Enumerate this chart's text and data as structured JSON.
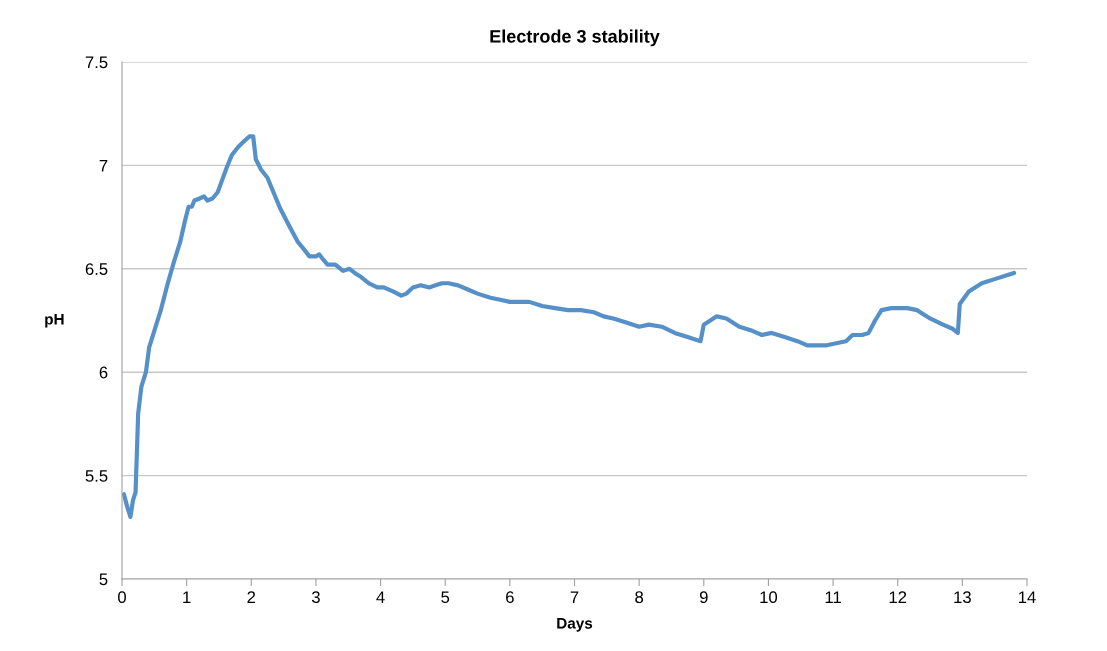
{
  "chart_data": {
    "type": "line",
    "title": "Electrode 3 stability",
    "xlabel": "Days",
    "ylabel": "pH",
    "xlim": [
      0,
      14
    ],
    "xticks": [
      0,
      1,
      2,
      3,
      4,
      5,
      6,
      7,
      8,
      9,
      10,
      11,
      12,
      13,
      14
    ],
    "ylim": [
      5,
      7.5
    ],
    "yticks": [
      5,
      5.5,
      6,
      6.5,
      7,
      7.5
    ],
    "grid": "y",
    "marker": "none",
    "line_style": "solid",
    "series": [
      {
        "color": "#5590c8",
        "x": [
          0.03,
          0.08,
          0.13,
          0.17,
          0.21,
          0.25,
          0.3,
          0.37,
          0.42,
          0.5,
          0.6,
          0.7,
          0.8,
          0.9,
          0.98,
          1.03,
          1.08,
          1.12,
          1.2,
          1.27,
          1.32,
          1.4,
          1.48,
          1.55,
          1.62,
          1.7,
          1.8,
          1.9,
          1.97,
          2.03,
          2.07,
          2.15,
          2.25,
          2.33,
          2.45,
          2.6,
          2.72,
          2.8,
          2.9,
          3.0,
          3.05,
          3.1,
          3.18,
          3.3,
          3.42,
          3.52,
          3.6,
          3.7,
          3.82,
          3.95,
          4.05,
          4.2,
          4.32,
          4.4,
          4.5,
          4.62,
          4.75,
          4.85,
          4.95,
          5.05,
          5.2,
          5.35,
          5.5,
          5.7,
          5.85,
          6.0,
          6.15,
          6.3,
          6.5,
          6.7,
          6.9,
          7.1,
          7.3,
          7.45,
          7.6,
          7.8,
          8.0,
          8.15,
          8.35,
          8.55,
          8.75,
          8.95,
          9.0,
          9.1,
          9.2,
          9.35,
          9.55,
          9.75,
          9.9,
          10.05,
          10.25,
          10.45,
          10.6,
          10.75,
          10.9,
          11.05,
          11.2,
          11.3,
          11.45,
          11.55,
          11.65,
          11.75,
          11.9,
          12.0,
          12.15,
          12.3,
          12.5,
          12.7,
          12.85,
          12.93,
          12.96,
          13.1,
          13.3,
          13.5,
          13.7,
          13.8
        ],
        "values": [
          5.41,
          5.35,
          5.3,
          5.38,
          5.42,
          5.8,
          5.93,
          6.0,
          6.12,
          6.2,
          6.3,
          6.42,
          6.53,
          6.63,
          6.74,
          6.8,
          6.8,
          6.83,
          6.84,
          6.85,
          6.83,
          6.84,
          6.87,
          6.93,
          6.99,
          7.05,
          7.09,
          7.12,
          7.14,
          7.14,
          7.03,
          6.98,
          6.94,
          6.88,
          6.79,
          6.7,
          6.63,
          6.6,
          6.56,
          6.56,
          6.57,
          6.55,
          6.52,
          6.52,
          6.49,
          6.5,
          6.48,
          6.46,
          6.43,
          6.41,
          6.41,
          6.39,
          6.37,
          6.38,
          6.41,
          6.42,
          6.41,
          6.42,
          6.43,
          6.43,
          6.42,
          6.4,
          6.38,
          6.36,
          6.35,
          6.34,
          6.34,
          6.34,
          6.32,
          6.31,
          6.3,
          6.3,
          6.29,
          6.27,
          6.26,
          6.24,
          6.22,
          6.23,
          6.22,
          6.19,
          6.17,
          6.15,
          6.23,
          6.25,
          6.27,
          6.26,
          6.22,
          6.2,
          6.18,
          6.19,
          6.17,
          6.15,
          6.13,
          6.13,
          6.13,
          6.14,
          6.15,
          6.18,
          6.18,
          6.19,
          6.25,
          6.3,
          6.31,
          6.31,
          6.31,
          6.3,
          6.26,
          6.23,
          6.21,
          6.19,
          6.33,
          6.39,
          6.43,
          6.45,
          6.47,
          6.48
        ]
      }
    ]
  }
}
